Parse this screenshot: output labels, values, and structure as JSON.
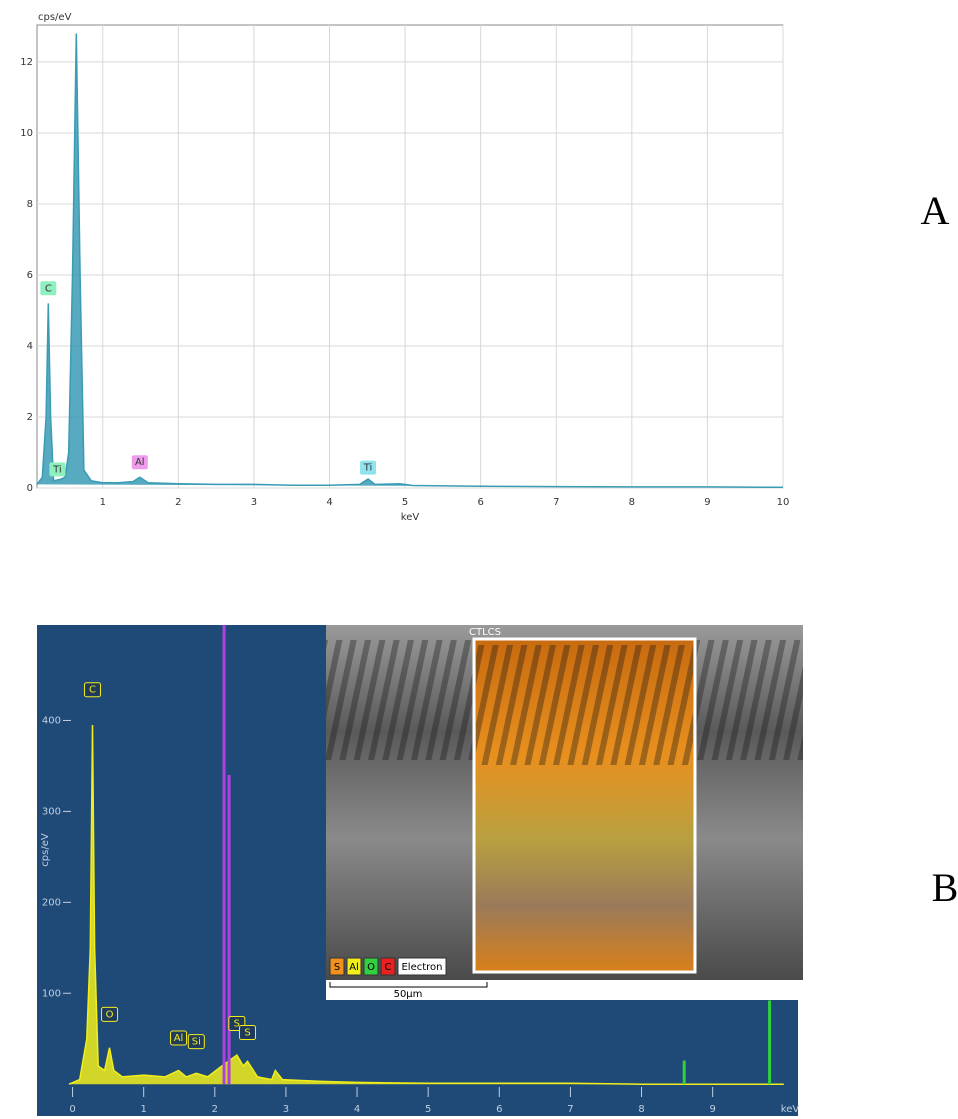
{
  "chart_data": [
    {
      "type": "line",
      "panel_label": "A",
      "ylabel": "cps/eV",
      "xlabel": "keV",
      "xlim": [
        0.13,
        10
      ],
      "ylim": [
        0,
        13.04
      ],
      "xticks": [
        1,
        2,
        3,
        4,
        5,
        6,
        7,
        8,
        9,
        10
      ],
      "yticks": [
        0,
        2,
        4,
        6,
        8,
        10,
        12
      ],
      "grid": true,
      "background": "#ffffff",
      "series": [
        {
          "color": "#3a9bb5",
          "style": "area",
          "x": [
            0.13,
            0.2,
            0.25,
            0.28,
            0.31,
            0.35,
            0.45,
            0.5,
            0.55,
            0.6,
            0.65,
            0.7,
            0.75,
            0.85,
            1.0,
            1.2,
            1.4,
            1.49,
            1.6,
            2.0,
            2.5,
            3.0,
            3.5,
            4.0,
            4.4,
            4.51,
            4.6,
            4.93,
            5.1,
            6,
            7,
            8,
            9,
            10
          ],
          "values": [
            0.1,
            0.3,
            2,
            5.2,
            2,
            0.2,
            0.25,
            0.3,
            1,
            6,
            12.8,
            6,
            0.5,
            0.2,
            0.15,
            0.15,
            0.18,
            0.3,
            0.15,
            0.12,
            0.1,
            0.1,
            0.08,
            0.08,
            0.1,
            0.25,
            0.1,
            0.12,
            0.07,
            0.05,
            0.04,
            0.03,
            0.03,
            0.02
          ]
        }
      ],
      "annotations": [
        {
          "text": "C",
          "x": 0.28,
          "y": 5.4,
          "color": "#8ff0bf"
        },
        {
          "text": "Ti",
          "x": 0.4,
          "y": 0.3,
          "color": "#8ff0bf"
        },
        {
          "text": "Al",
          "x": 1.49,
          "y": 0.5,
          "color": "#ee9bee"
        },
        {
          "text": "Ti",
          "x": 4.51,
          "y": 0.35,
          "color": "#8fe2ee"
        }
      ]
    },
    {
      "type": "line",
      "panel_label": "B",
      "ylabel": "cps/eV",
      "xlabel": "keV",
      "xlim": [
        -0.5,
        10.2
      ],
      "ylim": [
        -35,
        505
      ],
      "xticks": [
        0,
        1,
        2,
        3,
        4,
        5,
        6,
        7,
        8,
        9
      ],
      "yticks": [
        100,
        200,
        300,
        400
      ],
      "grid": false,
      "background": "#1f4a78",
      "series": [
        {
          "color": "#f2ee1a",
          "style": "area",
          "x": [
            -0.05,
            0.1,
            0.2,
            0.25,
            0.28,
            0.31,
            0.36,
            0.45,
            0.52,
            0.58,
            0.7,
            1.0,
            1.3,
            1.49,
            1.6,
            1.74,
            1.9,
            2.1,
            2.31,
            2.4,
            2.46,
            2.6,
            2.8,
            2.85,
            2.95,
            3.5,
            4,
            5,
            6,
            7,
            8,
            10
          ],
          "values": [
            0,
            5,
            50,
            150,
            395,
            150,
            20,
            15,
            40,
            15,
            8,
            10,
            8,
            15,
            8,
            12,
            8,
            20,
            32,
            20,
            25,
            8,
            5,
            15,
            5,
            3,
            2,
            1,
            1,
            1,
            0,
            0
          ]
        },
        {
          "color": "#b040e0",
          "style": "stem",
          "x": [
            2.13,
            2.2
          ],
          "values": [
            505,
            340
          ]
        },
        {
          "color": "#30d040",
          "style": "stem",
          "x": [
            8.6,
            9.8
          ],
          "values": [
            26,
            92
          ]
        }
      ],
      "annotations": [
        {
          "text": "C",
          "x": 0.28,
          "y": 425,
          "color": "#1f3a5a"
        },
        {
          "text": "O",
          "x": 0.52,
          "y": 68,
          "color": "#1f3a5a"
        },
        {
          "text": "Al",
          "x": 1.49,
          "y": 42,
          "color": "#1f3a5a"
        },
        {
          "text": "Si",
          "x": 1.74,
          "y": 38,
          "color": "#1f3a5a"
        },
        {
          "text": "S",
          "x": 2.31,
          "y": 58,
          "color": "#1f3a5a"
        },
        {
          "text": "S",
          "x": 2.46,
          "y": 48,
          "color": "#1f3a5a"
        }
      ],
      "inset": {
        "title": "CTLCS",
        "scale_bar": "50μm",
        "legend": [
          {
            "name": "S",
            "color": "#f0901e"
          },
          {
            "name": "Al",
            "color": "#f2ee1a"
          },
          {
            "name": "O",
            "color": "#30d040"
          },
          {
            "name": "C",
            "color": "#e82020"
          },
          {
            "name": "Electron",
            "color": "#ffffff"
          }
        ]
      }
    }
  ]
}
